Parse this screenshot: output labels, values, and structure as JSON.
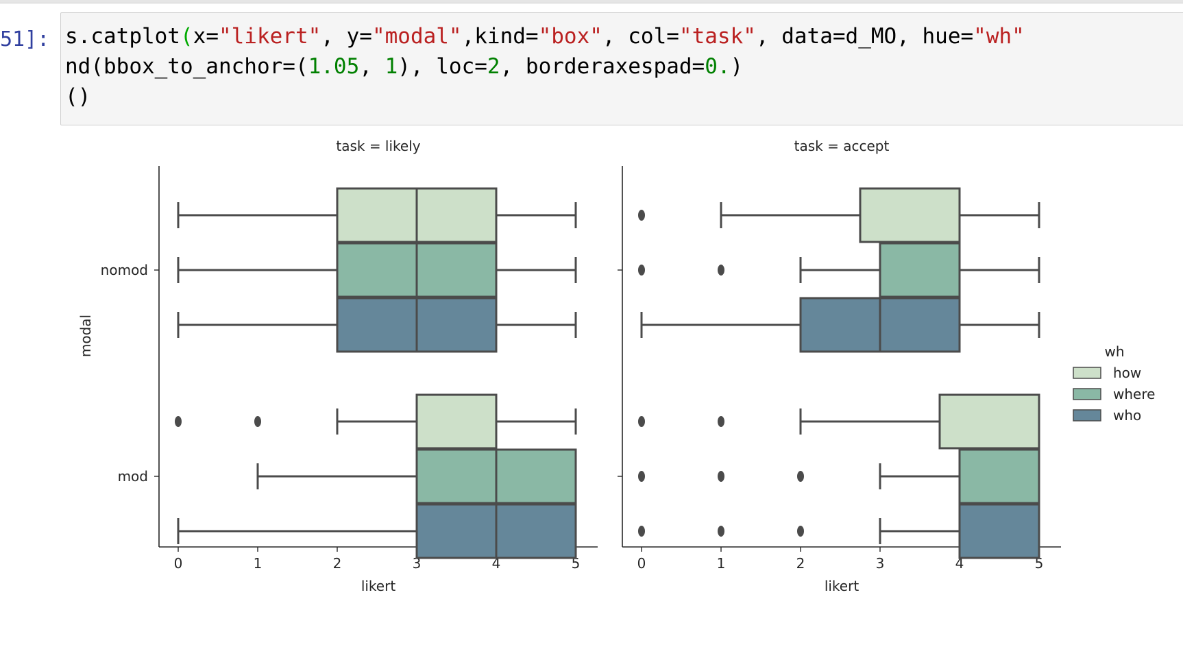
{
  "notebook": {
    "prompt_label": "51]:",
    "code_lines": [
      [
        {
          "t": "s.catplot",
          "c": ""
        },
        {
          "t": "(",
          "c": "br"
        },
        {
          "t": "x=",
          "c": ""
        },
        {
          "t": "\"likert\"",
          "c": "s"
        },
        {
          "t": ", y=",
          "c": ""
        },
        {
          "t": "\"modal\"",
          "c": "s"
        },
        {
          "t": ",kind=",
          "c": ""
        },
        {
          "t": "\"box\"",
          "c": "s"
        },
        {
          "t": ", col=",
          "c": ""
        },
        {
          "t": "\"task\"",
          "c": "s"
        },
        {
          "t": ", data=d_MO, hue=",
          "c": ""
        },
        {
          "t": "\"wh\"",
          "c": "s"
        }
      ],
      [
        {
          "t": "nd(bbox_to_anchor=(",
          "c": ""
        },
        {
          "t": "1.05",
          "c": "n"
        },
        {
          "t": ", ",
          "c": ""
        },
        {
          "t": "1",
          "c": "n"
        },
        {
          "t": "), loc=",
          "c": ""
        },
        {
          "t": "2",
          "c": "n"
        },
        {
          "t": ", borderaxespad=",
          "c": ""
        },
        {
          "t": "0.",
          "c": "n"
        },
        {
          "t": ")",
          "c": ""
        }
      ],
      [
        {
          "t": "()",
          "c": ""
        }
      ]
    ]
  },
  "chart_data": {
    "type": "box",
    "orientation": "horizontal",
    "y_label": "modal",
    "x_label": "likert",
    "x_ticks": [
      "0",
      "1",
      "2",
      "3",
      "4",
      "5"
    ],
    "xlim": [
      -0.25,
      5.25
    ],
    "categories": [
      "nomod",
      "mod"
    ],
    "legend": {
      "title": "wh",
      "placement": "right",
      "entries": [
        {
          "name": "how",
          "color": "#cde0c9"
        },
        {
          "name": "where",
          "color": "#8ab8a5"
        },
        {
          "name": "who",
          "color": "#65879a"
        }
      ]
    },
    "panels": [
      {
        "title": "task = likely",
        "boxes": [
          {
            "category": "nomod",
            "hue": "how",
            "whisker_low": 0,
            "q1": 2,
            "median": 3,
            "q3": 4,
            "whisker_high": 5,
            "outliers": []
          },
          {
            "category": "nomod",
            "hue": "where",
            "whisker_low": 0,
            "q1": 2,
            "median": 3,
            "q3": 4,
            "whisker_high": 5,
            "outliers": []
          },
          {
            "category": "nomod",
            "hue": "who",
            "whisker_low": 0,
            "q1": 2,
            "median": 3,
            "q3": 4,
            "whisker_high": 5,
            "outliers": []
          },
          {
            "category": "mod",
            "hue": "how",
            "whisker_low": 2,
            "q1": 3,
            "median": 4,
            "q3": 4,
            "whisker_high": 5,
            "outliers": [
              0,
              1
            ]
          },
          {
            "category": "mod",
            "hue": "where",
            "whisker_low": 1,
            "q1": 3,
            "median": 4,
            "q3": 5,
            "whisker_high": 5,
            "outliers": []
          },
          {
            "category": "mod",
            "hue": "who",
            "whisker_low": 0,
            "q1": 3,
            "median": 4,
            "q3": 5,
            "whisker_high": 5,
            "outliers": []
          }
        ]
      },
      {
        "title": "task = accept",
        "boxes": [
          {
            "category": "nomod",
            "hue": "how",
            "whisker_low": 1,
            "q1": 2.75,
            "median": 4,
            "q3": 4,
            "whisker_high": 5,
            "outliers": [
              0
            ]
          },
          {
            "category": "nomod",
            "hue": "where",
            "whisker_low": 2,
            "q1": 3,
            "median": 4,
            "q3": 4,
            "whisker_high": 5,
            "outliers": [
              0,
              1
            ]
          },
          {
            "category": "nomod",
            "hue": "who",
            "whisker_low": 0,
            "q1": 2,
            "median": 3,
            "q3": 4,
            "whisker_high": 5,
            "outliers": []
          },
          {
            "category": "mod",
            "hue": "how",
            "whisker_low": 2,
            "q1": 3.75,
            "median": 5,
            "q3": 5,
            "whisker_high": 5,
            "outliers": [
              0,
              1
            ]
          },
          {
            "category": "mod",
            "hue": "where",
            "whisker_low": 3,
            "q1": 4,
            "median": 5,
            "q3": 5,
            "whisker_high": 5,
            "outliers": [
              0,
              1,
              2
            ]
          },
          {
            "category": "mod",
            "hue": "who",
            "whisker_low": 3,
            "q1": 4,
            "median": 5,
            "q3": 5,
            "whisker_high": 5,
            "outliers": [
              0,
              1,
              2
            ]
          }
        ]
      }
    ]
  }
}
